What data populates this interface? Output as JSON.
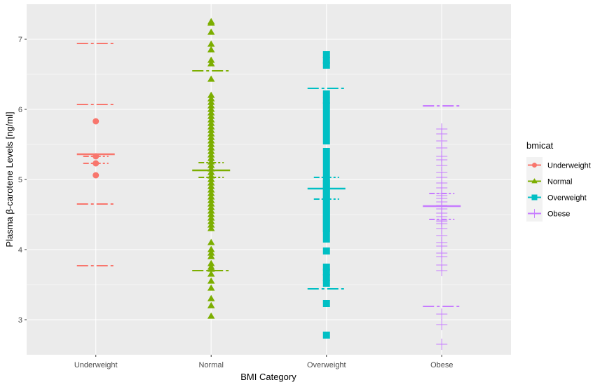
{
  "chart_data": {
    "type": "scatter",
    "xlabel": "BMI Category",
    "ylabel": "Plasma β-carotene Levels [ng/ml]",
    "categories": [
      "Underweight",
      "Normal",
      "Overweight",
      "Obese"
    ],
    "ylim": [
      2.5,
      7.5
    ],
    "yticks": [
      3,
      4,
      5,
      6,
      7
    ],
    "grid": true,
    "legend": {
      "title": "bmicat",
      "placement": "right",
      "entries": [
        "Underweight",
        "Normal",
        "Overweight",
        "Obese"
      ]
    },
    "series": [
      {
        "name": "Underweight",
        "color": "#F8766D",
        "marker": "circle",
        "values": [
          5.83,
          5.33,
          5.23,
          5.06
        ],
        "mean": 5.36,
        "ci_inner": [
          5.23,
          5.33
        ],
        "ci_lower_1": 4.65,
        "ci_upper_1": 6.07,
        "ci_lower_2": 3.77,
        "ci_upper_2": 6.94
      },
      {
        "name": "Normal",
        "color": "#7CAE00",
        "marker": "triangle",
        "values": [
          7.25,
          7.23,
          7.1,
          6.93,
          6.85,
          6.7,
          6.65,
          6.43,
          6.2,
          6.15,
          6.1,
          6.05,
          6.0,
          5.95,
          5.9,
          5.85,
          5.8,
          5.75,
          5.7,
          5.65,
          5.6,
          5.55,
          5.5,
          5.45,
          5.4,
          5.35,
          5.3,
          5.25,
          5.2,
          5.15,
          5.1,
          5.05,
          5.0,
          4.95,
          4.9,
          4.85,
          4.8,
          4.75,
          4.7,
          4.65,
          4.6,
          4.55,
          4.5,
          4.45,
          4.4,
          4.35,
          4.3,
          4.1,
          4.0,
          3.95,
          3.9,
          3.8,
          3.75,
          3.72,
          3.65,
          3.55,
          3.45,
          3.3,
          3.2,
          3.05
        ],
        "mean": 5.13,
        "ci_inner": [
          5.03,
          5.24
        ],
        "ci_lower_1": 3.7,
        "ci_upper_1": 6.55
      },
      {
        "name": "Overweight",
        "color": "#00BFC4",
        "marker": "square",
        "values": [
          6.78,
          6.7,
          6.63,
          6.22,
          6.13,
          6.05,
          5.95,
          5.85,
          5.75,
          5.65,
          5.55,
          5.4,
          5.3,
          5.2,
          5.1,
          5.0,
          4.95,
          4.9,
          4.85,
          4.8,
          4.75,
          4.7,
          4.65,
          4.6,
          4.55,
          4.5,
          4.45,
          4.4,
          4.35,
          4.3,
          4.25,
          4.15,
          3.98,
          3.75,
          3.68,
          3.6,
          3.52,
          3.23,
          2.78
        ],
        "mean": 4.87,
        "ci_inner": [
          4.72,
          5.03
        ],
        "ci_lower_1": 3.44,
        "ci_upper_1": 6.3
      },
      {
        "name": "Obese",
        "color": "#C77CFF",
        "marker": "plus",
        "values": [
          5.72,
          5.65,
          5.55,
          5.45,
          5.33,
          5.28,
          5.2,
          5.1,
          5.03,
          4.95,
          4.88,
          4.8,
          4.77,
          4.73,
          4.68,
          4.63,
          4.58,
          4.52,
          4.47,
          4.42,
          4.4,
          4.37,
          4.3,
          4.2,
          4.1,
          4.05,
          3.95,
          3.9,
          3.78,
          3.7,
          3.08,
          2.93,
          2.65
        ],
        "mean": 4.62,
        "ci_inner": [
          4.43,
          4.8
        ],
        "ci_lower_1": 3.19,
        "ci_upper_1": 6.05
      }
    ]
  }
}
